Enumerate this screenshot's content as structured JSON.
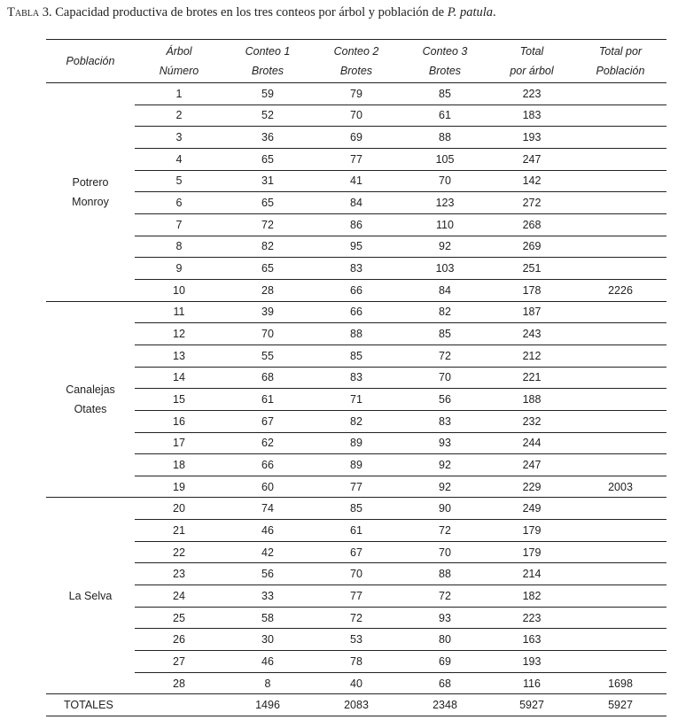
{
  "caption": {
    "label": "Tabla 3",
    "text": ". Capacidad productiva de brotes en los tres conteos por árbol y población de ",
    "species": "P. patula",
    "end": "."
  },
  "headers": [
    [
      "Población"
    ],
    [
      "Árbol",
      "Número"
    ],
    [
      "Conteo 1",
      "Brotes"
    ],
    [
      "Conteo 2",
      "Brotes"
    ],
    [
      "Conteo 3",
      "Brotes"
    ],
    [
      "Total",
      "por árbol"
    ],
    [
      "Total por",
      "Población"
    ]
  ],
  "groups": [
    {
      "population": [
        "Potrero",
        "Monroy"
      ],
      "total": "2226",
      "rows": [
        [
          "1",
          "59",
          "79",
          "85",
          "223"
        ],
        [
          "2",
          "52",
          "70",
          "61",
          "183"
        ],
        [
          "3",
          "36",
          "69",
          "88",
          "193"
        ],
        [
          "4",
          "65",
          "77",
          "105",
          "247"
        ],
        [
          "5",
          "31",
          "41",
          "70",
          "142"
        ],
        [
          "6",
          "65",
          "84",
          "123",
          "272"
        ],
        [
          "7",
          "72",
          "86",
          "110",
          "268"
        ],
        [
          "8",
          "82",
          "95",
          "92",
          "269"
        ],
        [
          "9",
          "65",
          "83",
          "103",
          "251"
        ],
        [
          "10",
          "28",
          "66",
          "84",
          "178"
        ]
      ]
    },
    {
      "population": [
        "Canalejas",
        "Otates"
      ],
      "total": "2003",
      "rows": [
        [
          "11",
          "39",
          "66",
          "82",
          "187"
        ],
        [
          "12",
          "70",
          "88",
          "85",
          "243"
        ],
        [
          "13",
          "55",
          "85",
          "72",
          "212"
        ],
        [
          "14",
          "68",
          "83",
          "70",
          "221"
        ],
        [
          "15",
          "61",
          "71",
          "56",
          "188"
        ],
        [
          "16",
          "67",
          "82",
          "83",
          "232"
        ],
        [
          "17",
          "62",
          "89",
          "93",
          "244"
        ],
        [
          "18",
          "66",
          "89",
          "92",
          "247"
        ],
        [
          "19",
          "60",
          "77",
          "92",
          "229"
        ]
      ]
    },
    {
      "population": [
        "La Selva"
      ],
      "total": "1698",
      "rows": [
        [
          "20",
          "74",
          "85",
          "90",
          "249"
        ],
        [
          "21",
          "46",
          "61",
          "72",
          "179"
        ],
        [
          "22",
          "42",
          "67",
          "70",
          "179"
        ],
        [
          "23",
          "56",
          "70",
          "88",
          "214"
        ],
        [
          "24",
          "33",
          "77",
          "72",
          "182"
        ],
        [
          "25",
          "58",
          "72",
          "93",
          "223"
        ],
        [
          "26",
          "30",
          "53",
          "80",
          "163"
        ],
        [
          "27",
          "46",
          "78",
          "69",
          "193"
        ],
        [
          "28",
          "8",
          "40",
          "68",
          "116"
        ]
      ]
    }
  ],
  "totals": {
    "label": "TOTALES",
    "arbol": "",
    "conteo1": "1496",
    "conteo2": "2083",
    "conteo3": "2348",
    "total_arbol": "5927",
    "total_poblacion": "5927"
  }
}
